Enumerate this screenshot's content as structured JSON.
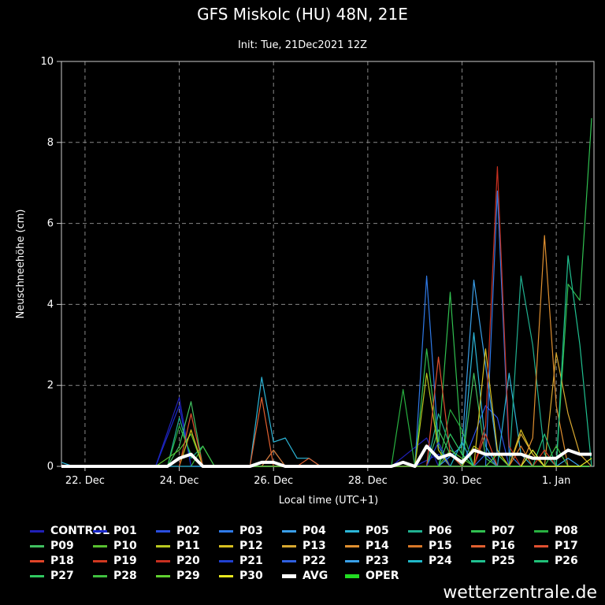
{
  "header": {
    "title": "GFS Miskolc (HU) 48N, 21E",
    "subtitle": "Init: Tue, 21Dec2021 12Z"
  },
  "watermark": "wetterzentrale.de",
  "chart_data": {
    "type": "line",
    "title": "GFS Miskolc (HU) 48N, 21E",
    "subtitle": "Init: Tue, 21Dec2021 12Z",
    "xlabel": "Local time (UTC+1)",
    "ylabel": "Neuschneehöhe (cm)",
    "ylim": [
      0,
      10
    ],
    "yticks": [
      0,
      2,
      4,
      6,
      8,
      10
    ],
    "xlim": [
      21.5,
      32.8
    ],
    "xticks": [
      {
        "x": 22,
        "label": "22. Dec"
      },
      {
        "x": 24,
        "label": "24. Dec"
      },
      {
        "x": 26,
        "label": "26. Dec"
      },
      {
        "x": 28,
        "label": "28. Dec"
      },
      {
        "x": 30,
        "label": "30. Dec"
      },
      {
        "x": 32,
        "label": "1. Jan"
      }
    ],
    "grid": true,
    "series": [
      {
        "name": "CONTROL",
        "color": "#2020b8",
        "points": [
          [
            23.5,
            0
          ],
          [
            24,
            1.7
          ],
          [
            24.25,
            0
          ],
          [
            28.5,
            0
          ],
          [
            29.25,
            0.7
          ],
          [
            29.5,
            0
          ],
          [
            32.7,
            0
          ]
        ]
      },
      {
        "name": "P01",
        "color": "#1a28c8",
        "points": [
          [
            23.5,
            0
          ],
          [
            24,
            1.5
          ],
          [
            24.25,
            0
          ],
          [
            29,
            0
          ],
          [
            29.5,
            0.3
          ],
          [
            29.75,
            0
          ],
          [
            32.7,
            0
          ]
        ]
      },
      {
        "name": "P02",
        "color": "#2a4ee0",
        "points": [
          [
            25.75,
            0
          ],
          [
            26,
            0.4
          ],
          [
            26.25,
            0
          ],
          [
            30,
            0
          ],
          [
            30.5,
            1.5
          ],
          [
            30.75,
            1.2
          ],
          [
            31,
            0
          ],
          [
            32.7,
            0
          ]
        ]
      },
      {
        "name": "P03",
        "color": "#2f7ae8",
        "points": [
          [
            29,
            0
          ],
          [
            29.25,
            4.7
          ],
          [
            29.5,
            0.5
          ],
          [
            29.75,
            0
          ],
          [
            30.5,
            0
          ],
          [
            30.75,
            6.8
          ],
          [
            31,
            0.3
          ],
          [
            31.25,
            0
          ],
          [
            32.7,
            0
          ]
        ]
      },
      {
        "name": "P04",
        "color": "#3a9ee8",
        "points": [
          [
            29.5,
            0
          ],
          [
            30,
            0.5
          ],
          [
            30.25,
            4.6
          ],
          [
            30.5,
            2.5
          ],
          [
            30.75,
            0.3
          ],
          [
            31,
            0
          ],
          [
            32.7,
            0
          ]
        ]
      },
      {
        "name": "P05",
        "color": "#2cb6d8",
        "points": [
          [
            21.5,
            0.1
          ],
          [
            21.75,
            0
          ],
          [
            25.5,
            0
          ],
          [
            25.75,
            2.2
          ],
          [
            26,
            0.6
          ],
          [
            26.25,
            0.7
          ],
          [
            26.5,
            0.2
          ],
          [
            26.75,
            0.2
          ],
          [
            27,
            0
          ],
          [
            30,
            0
          ],
          [
            30.25,
            3.3
          ],
          [
            30.5,
            0.5
          ],
          [
            30.75,
            0
          ],
          [
            31,
            2.3
          ],
          [
            31.25,
            0.3
          ],
          [
            31.5,
            0
          ],
          [
            32.7,
            0
          ]
        ]
      },
      {
        "name": "P06",
        "color": "#20b090",
        "points": [
          [
            23.75,
            0
          ],
          [
            24,
            1.2
          ],
          [
            24.25,
            0.2
          ],
          [
            24.5,
            0.5
          ],
          [
            24.75,
            0
          ],
          [
            29.25,
            0
          ],
          [
            29.5,
            1.3
          ],
          [
            29.75,
            0.5
          ],
          [
            30,
            0
          ],
          [
            31,
            0
          ],
          [
            31.25,
            4.7
          ],
          [
            31.5,
            3.0
          ],
          [
            31.75,
            0.3
          ],
          [
            32,
            0
          ],
          [
            32.7,
            0
          ]
        ]
      },
      {
        "name": "P07",
        "color": "#30c050",
        "points": [
          [
            29,
            0
          ],
          [
            29.25,
            2.9
          ],
          [
            29.5,
            0.5
          ],
          [
            29.75,
            4.3
          ],
          [
            30,
            0.3
          ],
          [
            30.25,
            0
          ],
          [
            32,
            0
          ],
          [
            32.25,
            4.5
          ],
          [
            32.5,
            4.1
          ],
          [
            32.75,
            8.6
          ]
        ]
      },
      {
        "name": "P08",
        "color": "#28b040",
        "points": [
          [
            23.75,
            0
          ],
          [
            24,
            1.0
          ],
          [
            24.25,
            0.3
          ],
          [
            24.5,
            0
          ],
          [
            28.5,
            0
          ],
          [
            28.75,
            1.9
          ],
          [
            29,
            0
          ],
          [
            29.5,
            0
          ],
          [
            29.75,
            1.4
          ],
          [
            30,
            0.9
          ],
          [
            30.25,
            0
          ],
          [
            32.7,
            0
          ]
        ]
      },
      {
        "name": "P09",
        "color": "#40c060",
        "points": [
          [
            23.75,
            0
          ],
          [
            24,
            0.5
          ],
          [
            24.25,
            1.6
          ],
          [
            24.5,
            0
          ],
          [
            29.25,
            0
          ],
          [
            29.5,
            0.9
          ],
          [
            29.75,
            0.3
          ],
          [
            30,
            0
          ],
          [
            30.25,
            2.3
          ],
          [
            30.5,
            0.2
          ],
          [
            30.75,
            0
          ],
          [
            32.7,
            0
          ]
        ]
      },
      {
        "name": "P10",
        "color": "#58c030",
        "points": [
          [
            23.5,
            0
          ],
          [
            24,
            0.4
          ],
          [
            24.25,
            0.8
          ],
          [
            24.5,
            0
          ],
          [
            29.5,
            0
          ],
          [
            29.75,
            0.4
          ],
          [
            30,
            0.2
          ],
          [
            30.25,
            0
          ],
          [
            32.7,
            0
          ]
        ]
      },
      {
        "name": "P11",
        "color": "#b8c820",
        "points": [
          [
            29,
            0
          ],
          [
            29.25,
            2.3
          ],
          [
            29.5,
            0.4
          ],
          [
            29.75,
            0
          ],
          [
            30,
            0
          ],
          [
            30.25,
            0.5
          ],
          [
            30.5,
            0.3
          ],
          [
            30.75,
            0
          ],
          [
            32.7,
            0
          ]
        ]
      },
      {
        "name": "P12",
        "color": "#d8c020",
        "points": [
          [
            24,
            0
          ],
          [
            24.25,
            0.9
          ],
          [
            24.5,
            0
          ],
          [
            30.25,
            0
          ],
          [
            30.5,
            2.9
          ],
          [
            30.75,
            0.4
          ],
          [
            31,
            0
          ],
          [
            31.25,
            0.9
          ],
          [
            31.5,
            0.3
          ],
          [
            31.75,
            0
          ],
          [
            32.7,
            0
          ]
        ]
      },
      {
        "name": "P13",
        "color": "#d8a830",
        "points": [
          [
            31,
            0
          ],
          [
            31.25,
            0.8
          ],
          [
            31.5,
            0.3
          ],
          [
            31.75,
            0
          ],
          [
            32,
            2.8
          ],
          [
            32.25,
            1.3
          ],
          [
            32.5,
            0.3
          ],
          [
            32.75,
            0
          ]
        ]
      },
      {
        "name": "P14",
        "color": "#e09030",
        "points": [
          [
            31.25,
            0
          ],
          [
            31.5,
            0.7
          ],
          [
            31.75,
            5.7
          ],
          [
            32,
            1.5
          ],
          [
            32.25,
            0
          ],
          [
            32.7,
            0
          ]
        ]
      },
      {
        "name": "P15",
        "color": "#d87828",
        "points": [
          [
            25.75,
            0
          ],
          [
            26,
            0.4
          ],
          [
            26.25,
            0
          ],
          [
            31,
            0
          ],
          [
            31.25,
            0.5
          ],
          [
            31.5,
            0
          ],
          [
            32.7,
            0
          ]
        ]
      },
      {
        "name": "P16",
        "color": "#e06030",
        "points": [
          [
            25.5,
            0
          ],
          [
            25.75,
            1.7
          ],
          [
            26,
            0
          ],
          [
            26.5,
            0
          ],
          [
            26.75,
            0.2
          ],
          [
            27,
            0
          ],
          [
            32.7,
            0
          ]
        ]
      },
      {
        "name": "P17",
        "color": "#e05030",
        "points": [
          [
            24,
            0
          ],
          [
            24.25,
            1.3
          ],
          [
            24.5,
            0
          ],
          [
            29.25,
            0
          ],
          [
            29.5,
            2.7
          ],
          [
            29.75,
            0.3
          ],
          [
            30,
            0
          ],
          [
            32.7,
            0
          ]
        ]
      },
      {
        "name": "P18",
        "color": "#e04428",
        "points": [
          [
            30.25,
            0
          ],
          [
            30.5,
            0.8
          ],
          [
            30.75,
            0
          ],
          [
            32.7,
            0
          ]
        ]
      },
      {
        "name": "P19",
        "color": "#d03820",
        "points": [
          [
            31.5,
            0
          ],
          [
            31.75,
            0.4
          ],
          [
            32,
            0
          ],
          [
            32.7,
            0
          ]
        ]
      },
      {
        "name": "P20",
        "color": "#c83020",
        "points": [
          [
            30.25,
            0
          ],
          [
            30.5,
            1.0
          ],
          [
            30.75,
            7.4
          ],
          [
            31,
            0.5
          ],
          [
            31.25,
            0
          ],
          [
            32.7,
            0
          ]
        ]
      },
      {
        "name": "P21",
        "color": "#2040d0",
        "points": [
          [
            29.25,
            0
          ],
          [
            29.5,
            0.6
          ],
          [
            29.75,
            0
          ],
          [
            32.7,
            0
          ]
        ]
      },
      {
        "name": "P22",
        "color": "#3060e0",
        "points": [
          [
            30.25,
            0
          ],
          [
            30.5,
            0.3
          ],
          [
            30.75,
            0
          ],
          [
            32.7,
            0
          ]
        ]
      },
      {
        "name": "P23",
        "color": "#3aa0e8",
        "points": [
          [
            32,
            0
          ],
          [
            32.25,
            0.2
          ],
          [
            32.5,
            0
          ],
          [
            32.7,
            0
          ]
        ]
      },
      {
        "name": "P24",
        "color": "#20b8c8",
        "points": [
          [
            29.75,
            0
          ],
          [
            30,
            0.6
          ],
          [
            30.25,
            0
          ],
          [
            31.25,
            0
          ],
          [
            31.5,
            0.4
          ],
          [
            31.75,
            0
          ],
          [
            32.7,
            0
          ]
        ]
      },
      {
        "name": "P25",
        "color": "#20c090",
        "points": [
          [
            32,
            0
          ],
          [
            32.25,
            5.2
          ],
          [
            32.5,
            3.0
          ],
          [
            32.75,
            0
          ]
        ]
      },
      {
        "name": "P26",
        "color": "#20c078",
        "points": [
          [
            31.5,
            0
          ],
          [
            31.75,
            0.8
          ],
          [
            32,
            0
          ],
          [
            32.7,
            0
          ]
        ]
      },
      {
        "name": "P27",
        "color": "#30c860",
        "points": [
          [
            29.5,
            0
          ],
          [
            29.75,
            0.8
          ],
          [
            30,
            0.3
          ],
          [
            30.25,
            0
          ],
          [
            32.7,
            0
          ]
        ]
      },
      {
        "name": "P28",
        "color": "#40c040",
        "points": [
          [
            24.25,
            0
          ],
          [
            24.5,
            0.5
          ],
          [
            24.75,
            0
          ],
          [
            31.75,
            0
          ],
          [
            32,
            0.5
          ],
          [
            32.25,
            0
          ],
          [
            32.7,
            0
          ]
        ]
      },
      {
        "name": "P29",
        "color": "#60d030",
        "points": [
          [
            30.5,
            0
          ],
          [
            30.75,
            0.3
          ],
          [
            31,
            0
          ],
          [
            32.7,
            0
          ]
        ]
      },
      {
        "name": "P30",
        "color": "#e8e820",
        "points": [
          [
            31.25,
            0
          ],
          [
            31.5,
            0.4
          ],
          [
            31.75,
            0
          ],
          [
            32.5,
            0
          ],
          [
            32.75,
            0.2
          ]
        ]
      },
      {
        "name": "AVG",
        "color": "#ffffff",
        "width": 4,
        "points": [
          [
            21.5,
            0
          ],
          [
            23.75,
            0
          ],
          [
            24,
            0.2
          ],
          [
            24.25,
            0.3
          ],
          [
            24.5,
            0
          ],
          [
            25.5,
            0
          ],
          [
            25.75,
            0.1
          ],
          [
            26,
            0.1
          ],
          [
            26.25,
            0
          ],
          [
            28.5,
            0
          ],
          [
            28.75,
            0.1
          ],
          [
            29,
            0
          ],
          [
            29.25,
            0.5
          ],
          [
            29.5,
            0.2
          ],
          [
            29.75,
            0.3
          ],
          [
            30,
            0.1
          ],
          [
            30.25,
            0.4
          ],
          [
            30.5,
            0.3
          ],
          [
            30.75,
            0.3
          ],
          [
            31,
            0.3
          ],
          [
            31.25,
            0.3
          ],
          [
            31.5,
            0.2
          ],
          [
            31.75,
            0.2
          ],
          [
            32,
            0.2
          ],
          [
            32.25,
            0.4
          ],
          [
            32.5,
            0.3
          ],
          [
            32.75,
            0.3
          ]
        ]
      },
      {
        "name": "OPER",
        "color": "#22dd22",
        "width": 4,
        "points": []
      }
    ]
  }
}
